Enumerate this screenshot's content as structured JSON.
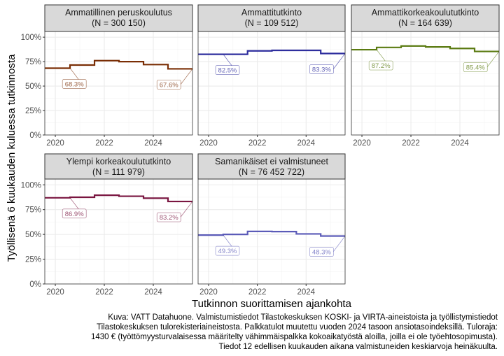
{
  "chart_data": {
    "type": "line",
    "step": true,
    "ylabel": "Työllisenä 6 kuukauden kuluessa tutkinnosta",
    "xlabel": "Tutkinnon suorittamisen ajankohta",
    "xlim": [
      2019.57,
      2025.6
    ],
    "ylim": [
      0,
      100
    ],
    "x_ticks": [
      "2020",
      "2022",
      "2024"
    ],
    "y_ticks": [
      "0%",
      "25%",
      "50%",
      "75%",
      "100%"
    ],
    "x": [
      2019.57,
      2020.6,
      2021.6,
      2022.6,
      2023.6,
      2024.6
    ],
    "grid": true,
    "panels": [
      {
        "title": "Ammatillinen peruskoulutus",
        "n": "(N = 300 150)",
        "color": "#7a2e05",
        "values": [
          68.3,
          71.5,
          76.0,
          75.0,
          72.0,
          67.6
        ],
        "first_label": "68.3%",
        "last_label": "67.6%"
      },
      {
        "title": "Ammattitutkinto",
        "n": "(N = 109 512)",
        "color": "#2e2e9e",
        "values": [
          82.5,
          82.5,
          86.0,
          86.5,
          86.5,
          83.3
        ],
        "first_label": "82.5%",
        "last_label": "83.3%"
      },
      {
        "title": "Ammattikorkeakoulututkinto",
        "n": "(N = 164 639)",
        "color": "#5a7a10",
        "values": [
          87.2,
          89.5,
          91.0,
          90.0,
          88.5,
          85.4
        ],
        "first_label": "87.2%",
        "last_label": "85.4%"
      },
      {
        "title": "Ylempi korkeakoulututkinto",
        "n": "(N = 111 979)",
        "color": "#7a1540",
        "values": [
          86.9,
          87.5,
          89.5,
          88.5,
          86.5,
          83.2
        ],
        "first_label": "86.9%",
        "last_label": "83.2%"
      },
      {
        "title": "Samanikäiset ei valmistuneet",
        "n": "(N = 76 452 722)",
        "color": "#5b5bb8",
        "values": [
          49.3,
          50.0,
          53.0,
          52.8,
          50.5,
          48.3
        ],
        "first_label": "49.3%",
        "last_label": "48.3%"
      }
    ]
  },
  "caption": [
    "Kuva: VATT Datahuone. Valmistumistiedot Tilastokeskuksen KOSKI- ja VIRTA-aineistoista ja työllistymistiedot",
    "Tilastokeskuksen tulorekisteriaineistosta. Palkkatulot muutettu vuoden 2024 tasoon ansiotasoindeksillä. Tuloraja:",
    "1430 € (työttömyysturvalaisessa määritelty vähimmäispalkka kokoaikatyöstä aloilla, joilla ei ole työehtosopimusta).",
    "Tiedot 12 edellisen kuukauden aikana valmistuneiden keskiarvoja heinäkuulta."
  ]
}
